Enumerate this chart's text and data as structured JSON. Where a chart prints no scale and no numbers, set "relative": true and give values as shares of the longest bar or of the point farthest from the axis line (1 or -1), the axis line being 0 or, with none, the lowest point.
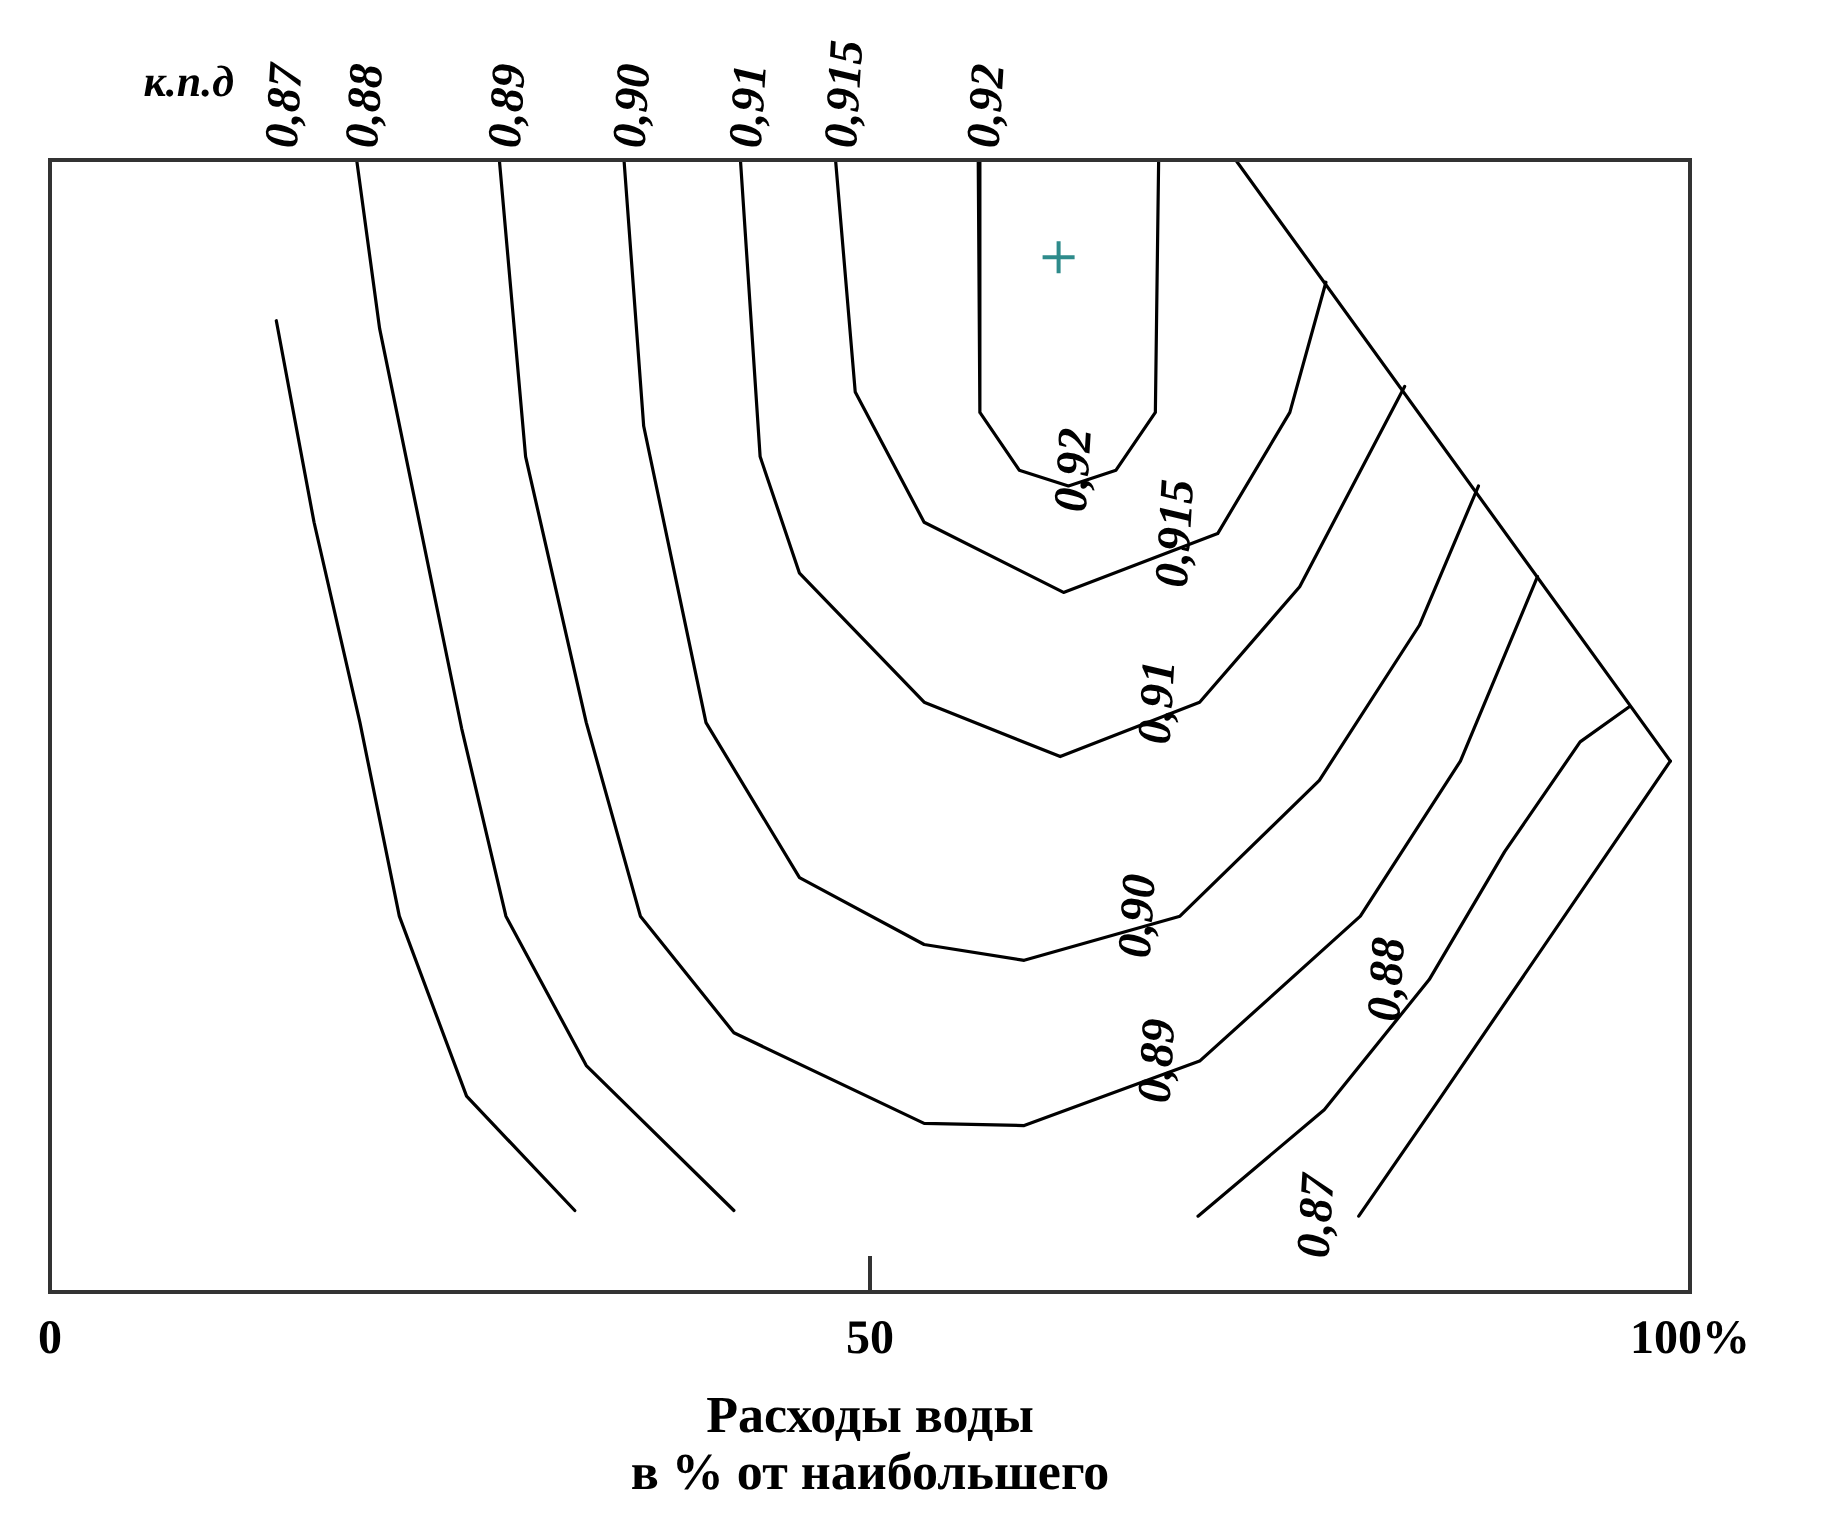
{
  "chart_data": {
    "type": "line",
    "relative": true,
    "legend_title": "к.п.д",
    "xlabel": "Расходы воды\nв % от наибольшего",
    "xlim": [
      0,
      100
    ],
    "xticks": [
      0,
      50,
      {
        "value": 100,
        "label": "100%"
      }
    ],
    "tick_labels": "x",
    "grid": false,
    "legend": false,
    "marker": "none",
    "line_style": "solid",
    "series": [
      {
        "name": "0,87",
        "color": "#000000",
        "x": [
          13.8,
          16.1,
          18.9,
          21.3,
          25.4,
          32.0,
          56.0,
          79.8,
          84.7,
          98.8
        ],
        "values": [
          0.858,
          0.68,
          0.503,
          0.332,
          0.173,
          0.072,
          null,
          0.067,
          0.17,
          0.469
        ]
      },
      {
        "name": "0,88",
        "color": "#000000",
        "x": [
          18.7,
          20.1,
          25.1,
          27.8,
          32.7,
          41.7,
          56.0,
          70.0,
          77.7,
          84.1,
          88.7,
          93.3,
          96.3
        ],
        "values": [
          1.0,
          0.851,
          0.498,
          0.332,
          0.2,
          0.072,
          null,
          0.067,
          0.161,
          0.276,
          0.389,
          0.486,
          0.517
        ]
      },
      {
        "name": "0,89",
        "color": "#000000",
        "x": [
          27.4,
          29.0,
          32.7,
          36.0,
          41.7,
          53.3,
          59.4,
          70.1,
          79.9,
          86.0,
          90.7
        ],
        "values": [
          1.0,
          0.738,
          0.503,
          0.332,
          0.229,
          0.149,
          0.147,
          0.204,
          0.332,
          0.469,
          0.632
        ]
      },
      {
        "name": "0,90",
        "color": "#000000",
        "x": [
          35.0,
          36.2,
          40.0,
          45.7,
          53.3,
          59.4,
          68.9,
          77.4,
          83.5,
          87.1
        ],
        "values": [
          1.0,
          0.765,
          0.503,
          0.366,
          0.307,
          0.293,
          0.332,
          0.452,
          0.589,
          0.712
        ]
      },
      {
        "name": "0,91",
        "color": "#000000",
        "x": [
          42.1,
          43.3,
          45.7,
          53.3,
          61.6,
          70.1,
          76.2,
          82.6
        ],
        "values": [
          1.0,
          0.738,
          0.635,
          0.521,
          0.473,
          0.521,
          0.623,
          0.8
        ]
      },
      {
        "name": "0,915",
        "color": "#000000",
        "x": [
          47.9,
          49.1,
          53.3,
          61.8,
          71.2,
          75.6,
          77.8
        ],
        "values": [
          1.0,
          0.795,
          0.68,
          0.618,
          0.67,
          0.777,
          0.892
        ]
      },
      {
        "name": "0,92",
        "color": "#000000",
        "x": [
          56.6,
          56.7,
          59.1,
          62.1,
          65.0,
          67.4,
          67.6
        ],
        "values": [
          1.0,
          0.777,
          0.726,
          0.712,
          0.726,
          0.777,
          1.0
        ]
      },
      {
        "color": "#000000",
        "x": [
          72.3,
          98.8
        ],
        "values": [
          1.0,
          0.469
        ]
      },
      {
        "type": "scatter",
        "marker": "cross",
        "color": "#2e8b8b",
        "x": [
          61.5
        ],
        "values": [
          0.914
        ]
      }
    ],
    "annotations": [
      "0,87",
      "0,88",
      "0,89",
      "0,90",
      "0,91",
      "0,915",
      "0,92"
    ]
  }
}
